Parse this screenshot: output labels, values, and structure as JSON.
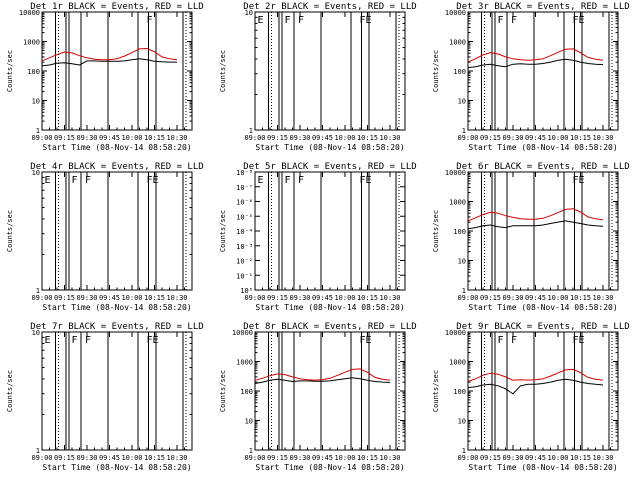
{
  "window": {
    "background": "#ffffff"
  },
  "colors": {
    "events": "#000000",
    "lld": "#d40000",
    "axis": "#000000"
  },
  "chart_data": [
    {
      "type": "line",
      "det": "1r",
      "title": "Det 1r  BLACK = Events, RED = LLD",
      "xlabel": "Start Time (08-Nov-14 08:58:20)",
      "ylabel": "Counts/sec",
      "yscale": "log",
      "ylim": [
        1,
        10000
      ],
      "ytick_labels": [
        "1",
        "10",
        "100",
        "1000",
        "10000"
      ],
      "xticks": [
        "09:00",
        "09:15",
        "09:30",
        "09:45",
        "10:00",
        "10:15",
        "10:30"
      ],
      "flags": [
        {
          "label": "F",
          "time": "10:09"
        }
      ],
      "has_data": true,
      "series": [
        {
          "name": "Events",
          "color": "black",
          "x": [
            "09:00",
            "09:05",
            "09:10",
            "09:15",
            "09:20",
            "09:25",
            "09:30",
            "09:35",
            "09:40",
            "09:45",
            "09:50",
            "09:55",
            "10:00",
            "10:05",
            "10:10",
            "10:15",
            "10:20",
            "10:25",
            "10:30"
          ],
          "y": [
            150,
            160,
            185,
            190,
            175,
            160,
            220,
            220,
            215,
            215,
            215,
            220,
            240,
            260,
            240,
            215,
            205,
            200,
            200
          ]
        },
        {
          "name": "LLD",
          "color": "red",
          "x": [
            "09:00",
            "09:05",
            "09:10",
            "09:15",
            "09:20",
            "09:25",
            "09:30",
            "09:35",
            "09:40",
            "09:45",
            "09:50",
            "09:55",
            "10:00",
            "10:05",
            "10:10",
            "10:15",
            "10:20",
            "10:25",
            "10:30"
          ],
          "y": [
            220,
            280,
            360,
            440,
            410,
            330,
            280,
            250,
            240,
            240,
            260,
            320,
            420,
            560,
            580,
            450,
            300,
            260,
            240
          ]
        }
      ]
    },
    {
      "type": "line",
      "det": "2r",
      "title": "Det 2r  BLACK = Events, RED = LLD",
      "xlabel": "Start Time (08-Nov-14 08:58:20)",
      "ylabel": "Counts/sec",
      "yscale": "log",
      "ylim": [
        1,
        10
      ],
      "ytick_labels": [
        "1",
        "10"
      ],
      "xticks": [
        "09:00",
        "09:15",
        "09:30",
        "09:45",
        "10:00",
        "10:15",
        "10:30"
      ],
      "flags": [
        {
          "label": "E",
          "time": "09:01"
        },
        {
          "label": "F",
          "time": "09:19"
        },
        {
          "label": "F",
          "time": "09:28"
        },
        {
          "label": "F",
          "time": "10:09"
        },
        {
          "label": "E",
          "time": "10:13"
        }
      ],
      "has_data": false,
      "series": []
    },
    {
      "type": "line",
      "det": "3r",
      "title": "Det 3r  BLACK = Events, RED = LLD",
      "xlabel": "Start Time (08-Nov-14 08:58:20)",
      "ylabel": "Counts/sec",
      "yscale": "log",
      "ylim": [
        1,
        10000
      ],
      "ytick_labels": [
        "1",
        "10",
        "100",
        "1000",
        "10000"
      ],
      "xticks": [
        "09:00",
        "09:15",
        "09:30",
        "09:45",
        "10:00",
        "10:15",
        "10:30"
      ],
      "flags": [
        {
          "label": "F",
          "time": "09:19"
        },
        {
          "label": "F",
          "time": "09:28"
        },
        {
          "label": "F",
          "time": "10:09"
        },
        {
          "label": "E",
          "time": "10:13"
        }
      ],
      "has_data": true,
      "series": [
        {
          "name": "Events",
          "color": "black",
          "x": [
            "09:00",
            "09:05",
            "09:10",
            "09:15",
            "09:20",
            "09:25",
            "09:30",
            "09:35",
            "09:40",
            "09:45",
            "09:50",
            "09:55",
            "10:00",
            "10:05",
            "10:10",
            "10:15",
            "10:20",
            "10:25",
            "10:30"
          ],
          "y": [
            130,
            140,
            160,
            170,
            150,
            140,
            170,
            175,
            170,
            170,
            180,
            200,
            230,
            250,
            230,
            200,
            180,
            170,
            165
          ]
        },
        {
          "name": "LLD",
          "color": "red",
          "x": [
            "09:00",
            "09:05",
            "09:10",
            "09:15",
            "09:20",
            "09:25",
            "09:30",
            "09:35",
            "09:40",
            "09:45",
            "09:50",
            "09:55",
            "10:00",
            "10:05",
            "10:10",
            "10:15",
            "10:20",
            "10:25",
            "10:30"
          ],
          "y": [
            200,
            260,
            350,
            420,
            380,
            300,
            260,
            240,
            230,
            240,
            260,
            330,
            430,
            550,
            560,
            420,
            290,
            250,
            230
          ]
        }
      ]
    },
    {
      "type": "line",
      "det": "4r",
      "title": "Det 4r  BLACK = Events, RED = LLD",
      "xlabel": "Start Time (08-Nov-14 08:58:20)",
      "ylabel": "Counts/sec",
      "yscale": "log",
      "ylim": [
        1,
        10
      ],
      "ytick_labels": [
        "1",
        "10"
      ],
      "xticks": [
        "09:00",
        "09:15",
        "09:30",
        "09:45",
        "10:00",
        "10:15",
        "10:30"
      ],
      "flags": [
        {
          "label": "E",
          "time": "09:01"
        },
        {
          "label": "F",
          "time": "09:19"
        },
        {
          "label": "F",
          "time": "09:28"
        },
        {
          "label": "F",
          "time": "10:09"
        },
        {
          "label": "E",
          "time": "10:13"
        }
      ],
      "has_data": false,
      "series": []
    },
    {
      "type": "line",
      "det": "5r",
      "title": "Det 5r  BLACK = Events, RED = LLD",
      "xlabel": "Start Time (08-Nov-14 08:58:20)",
      "ylabel": "Counts/sec",
      "yscale": "log",
      "ylim": [
        1,
        1e-08
      ],
      "ytick_labels": [
        "10⁰",
        "10⁻¹",
        "10⁻²",
        "10⁻³",
        "10⁻⁴",
        "10⁻⁵",
        "10⁻⁶",
        "10⁻⁷",
        "10⁻⁸"
      ],
      "xticks": [
        "09:00",
        "09:15",
        "09:30",
        "09:45",
        "10:00",
        "10:15",
        "10:30"
      ],
      "flags": [
        {
          "label": "E",
          "time": "09:01"
        },
        {
          "label": "F",
          "time": "09:19"
        },
        {
          "label": "F",
          "time": "09:28"
        },
        {
          "label": "F",
          "time": "10:09"
        },
        {
          "label": "E",
          "time": "10:13"
        }
      ],
      "has_data": false,
      "series": []
    },
    {
      "type": "line",
      "det": "6r",
      "title": "Det 6r  BLACK = Events, RED = LLD",
      "xlabel": "Start Time (08-Nov-14 08:58:20)",
      "ylabel": "Counts/sec",
      "yscale": "log",
      "ylim": [
        1,
        10000
      ],
      "ytick_labels": [
        "1",
        "10",
        "100",
        "1000",
        "10000"
      ],
      "xticks": [
        "09:00",
        "09:15",
        "09:30",
        "09:45",
        "10:00",
        "10:15",
        "10:30"
      ],
      "flags": [
        {
          "label": "F",
          "time": "10:09"
        },
        {
          "label": "E",
          "time": "10:13"
        }
      ],
      "has_data": true,
      "series": [
        {
          "name": "Events",
          "color": "black",
          "x": [
            "09:00",
            "09:05",
            "09:10",
            "09:15",
            "09:20",
            "09:25",
            "09:30",
            "09:35",
            "09:40",
            "09:45",
            "09:50",
            "09:55",
            "10:00",
            "10:05",
            "10:10",
            "10:15",
            "10:20",
            "10:25",
            "10:30"
          ],
          "y": [
            120,
            130,
            150,
            160,
            140,
            130,
            150,
            150,
            150,
            150,
            160,
            180,
            200,
            220,
            200,
            180,
            160,
            150,
            145
          ]
        },
        {
          "name": "LLD",
          "color": "red",
          "x": [
            "09:00",
            "09:05",
            "09:10",
            "09:15",
            "09:20",
            "09:25",
            "09:30",
            "09:35",
            "09:40",
            "09:45",
            "09:50",
            "09:55",
            "10:00",
            "10:05",
            "10:10",
            "10:15",
            "10:20",
            "10:25",
            "10:30"
          ],
          "y": [
            220,
            280,
            360,
            430,
            400,
            330,
            290,
            260,
            250,
            250,
            270,
            330,
            420,
            540,
            570,
            440,
            300,
            260,
            240
          ]
        }
      ]
    },
    {
      "type": "line",
      "det": "7r",
      "title": "Det 7r  BLACK = Events, RED = LLD",
      "xlabel": "Start Time (08-Nov-14 08:58:20)",
      "ylabel": "Counts/sec",
      "yscale": "log",
      "ylim": [
        1,
        10
      ],
      "ytick_labels": [
        "1",
        "10"
      ],
      "xticks": [
        "09:00",
        "09:15",
        "09:30",
        "09:45",
        "10:00",
        "10:15",
        "10:30"
      ],
      "flags": [
        {
          "label": "E",
          "time": "09:01"
        },
        {
          "label": "F",
          "time": "09:19"
        },
        {
          "label": "F",
          "time": "09:28"
        },
        {
          "label": "F",
          "time": "10:09"
        },
        {
          "label": "E",
          "time": "10:13"
        }
      ],
      "has_data": false,
      "series": []
    },
    {
      "type": "line",
      "det": "8r",
      "title": "Det 8r  BLACK = Events, RED = LLD",
      "xlabel": "Start Time (08-Nov-14 08:58:20)",
      "ylabel": "Counts/sec",
      "yscale": "log",
      "ylim": [
        1,
        10000
      ],
      "ytick_labels": [
        "1",
        "10",
        "100",
        "1000",
        "10000"
      ],
      "xticks": [
        "09:00",
        "09:15",
        "09:30",
        "09:45",
        "10:00",
        "10:15",
        "10:30"
      ],
      "flags": [
        {
          "label": "F",
          "time": "10:09"
        },
        {
          "label": "E",
          "time": "10:13"
        }
      ],
      "has_data": true,
      "series": [
        {
          "name": "Events",
          "color": "black",
          "x": [
            "09:00",
            "09:05",
            "09:10",
            "09:15",
            "09:20",
            "09:25",
            "09:30",
            "09:35",
            "09:40",
            "09:45",
            "09:50",
            "09:55",
            "10:00",
            "10:05",
            "10:10",
            "10:15",
            "10:20",
            "10:25",
            "10:30"
          ],
          "y": [
            180,
            200,
            230,
            250,
            230,
            210,
            220,
            220,
            215,
            215,
            220,
            240,
            260,
            280,
            260,
            230,
            210,
            200,
            195
          ]
        },
        {
          "name": "LLD",
          "color": "red",
          "x": [
            "09:00",
            "09:05",
            "09:10",
            "09:15",
            "09:20",
            "09:25",
            "09:30",
            "09:35",
            "09:40",
            "09:45",
            "09:50",
            "09:55",
            "10:00",
            "10:05",
            "10:10",
            "10:15",
            "10:20",
            "10:25",
            "10:30"
          ],
          "y": [
            230,
            270,
            330,
            380,
            360,
            300,
            260,
            240,
            235,
            240,
            270,
            340,
            430,
            540,
            560,
            430,
            290,
            250,
            235
          ]
        }
      ]
    },
    {
      "type": "line",
      "det": "9r",
      "title": "Det 9r  BLACK = Events, RED = LLD",
      "xlabel": "Start Time (08-Nov-14 08:58:20)",
      "ylabel": "Counts/sec",
      "yscale": "log",
      "ylim": [
        1,
        10000
      ],
      "ytick_labels": [
        "1",
        "10",
        "100",
        "1000",
        "10000"
      ],
      "xticks": [
        "09:00",
        "09:15",
        "09:30",
        "09:45",
        "10:00",
        "10:15",
        "10:30"
      ],
      "flags": [
        {
          "label": "F",
          "time": "09:19"
        },
        {
          "label": "F",
          "time": "09:28"
        },
        {
          "label": "F",
          "time": "10:09"
        },
        {
          "label": "E",
          "time": "10:13"
        }
      ],
      "has_data": true,
      "series": [
        {
          "name": "Events",
          "color": "black",
          "x": [
            "09:00",
            "09:05",
            "09:10",
            "09:15",
            "09:20",
            "09:25",
            "09:30",
            "09:35",
            "09:40",
            "09:45",
            "09:50",
            "09:55",
            "10:00",
            "10:05",
            "10:10",
            "10:15",
            "10:20",
            "10:25",
            "10:30"
          ],
          "y": [
            130,
            140,
            160,
            170,
            150,
            120,
            80,
            150,
            170,
            170,
            180,
            200,
            230,
            250,
            230,
            200,
            180,
            170,
            160
          ]
        },
        {
          "name": "LLD",
          "color": "red",
          "x": [
            "09:00",
            "09:05",
            "09:10",
            "09:15",
            "09:20",
            "09:25",
            "09:30",
            "09:35",
            "09:40",
            "09:45",
            "09:50",
            "09:55",
            "10:00",
            "10:05",
            "10:10",
            "10:15",
            "10:20",
            "10:25",
            "10:30"
          ],
          "y": [
            210,
            260,
            340,
            400,
            370,
            300,
            230,
            240,
            235,
            240,
            260,
            320,
            410,
            520,
            540,
            420,
            290,
            250,
            235
          ]
        }
      ]
    }
  ]
}
